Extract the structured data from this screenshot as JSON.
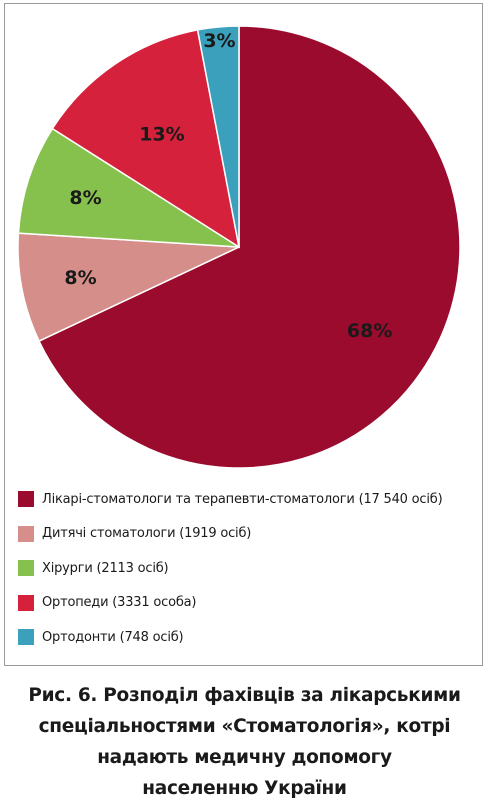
{
  "chart_data": {
    "type": "pie",
    "slices": [
      {
        "label": "68%",
        "value": 68,
        "color": "#9b0b2d"
      },
      {
        "label": "8%",
        "value": 8,
        "color": "#d58e8a"
      },
      {
        "label": "8%",
        "value": 8,
        "color": "#86c04d"
      },
      {
        "label": "13%",
        "value": 13,
        "color": "#d5213b"
      },
      {
        "label": "3%",
        "value": 3,
        "color": "#3aa0bb"
      }
    ],
    "legend": [
      {
        "text": "Лікарі-стоматологи та терапевти-стоматологи (17 540 осіб)",
        "color": "#9b0b2d"
      },
      {
        "text": "Дитячі стоматологи (1919 осіб)",
        "color": "#d58e8a"
      },
      {
        "text": "Хірурги (2113 осіб)",
        "color": "#86c04d"
      },
      {
        "text": "Ортопеди (3331 особа)",
        "color": "#d5213b"
      },
      {
        "text": "Ортодонти (748 осіб)",
        "color": "#3aa0bb"
      }
    ],
    "legend_position": "bottom"
  },
  "caption": {
    "lines": [
      "Рис. 6. Розподіл фахівців за лікарськими",
      "спеціальностями «Стоматологія», котрі",
      "надають медичну допомогу",
      "населенню України"
    ]
  }
}
